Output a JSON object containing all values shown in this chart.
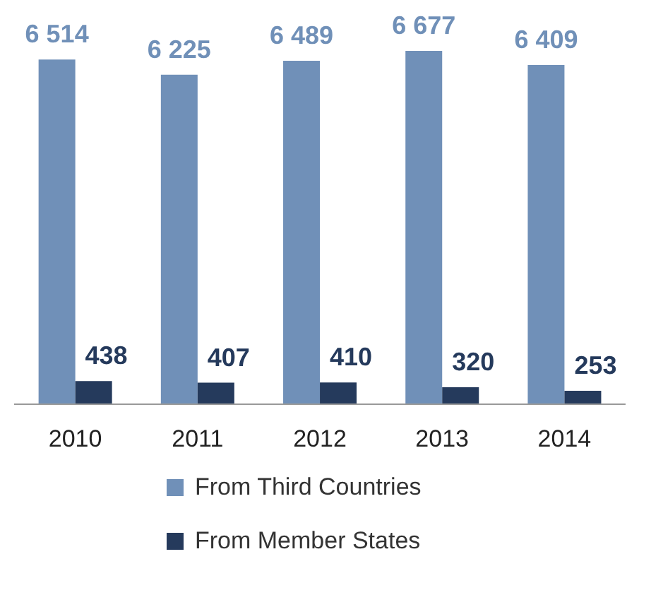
{
  "chart_data": {
    "type": "bar",
    "categories": [
      "2010",
      "2011",
      "2012",
      "2013",
      "2014"
    ],
    "series": [
      {
        "name": "From Third Countries",
        "color": "#7090b8",
        "values": [
          6514,
          6225,
          6489,
          6677,
          6409
        ],
        "value_labels": [
          "6 514",
          "6 225",
          "6 489",
          "6 677",
          "6 409"
        ]
      },
      {
        "name": "From Member States",
        "color": "#253a5c",
        "values": [
          438,
          407,
          410,
          320,
          253
        ],
        "value_labels": [
          "438",
          "407",
          "410",
          "320",
          "253"
        ]
      }
    ],
    "legend": "bottom",
    "grid": false
  }
}
